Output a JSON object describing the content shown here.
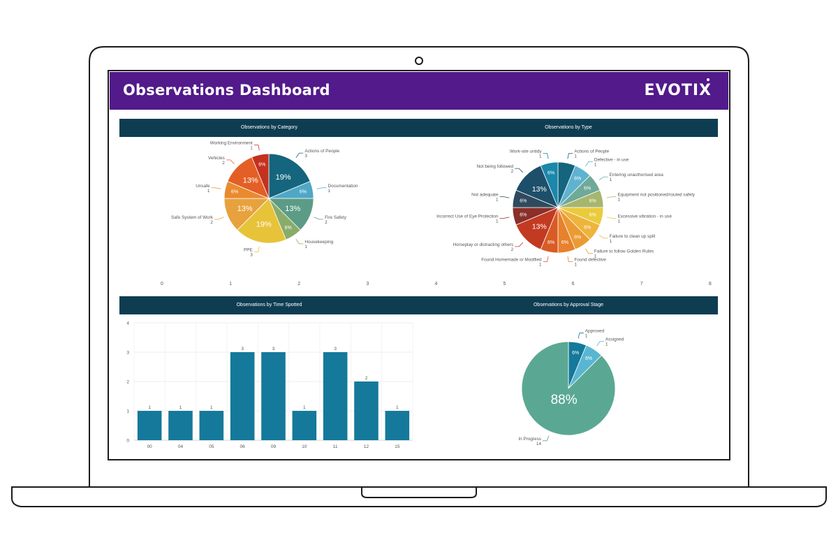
{
  "header": {
    "title": "Observations Dashboard",
    "logo_text": "EVOTIX",
    "bg_color": "#521a8a"
  },
  "panels": {
    "category_title": "Observations by Category",
    "type_title": "Observations by Type",
    "time_title": "Observations by Time Spotted",
    "approval_title": "Observations by Approval Stage"
  },
  "shared_axis_ticks": [
    "0",
    "1",
    "2",
    "3",
    "4",
    "5",
    "6",
    "7",
    "8"
  ],
  "chart_data": [
    {
      "type": "pie",
      "title": "Observations by Category",
      "labels": [
        "Actions of People",
        "Documentation",
        "Fire Safety",
        "Housekeeping",
        "PPE",
        "Safe System of Work",
        "Unsafe",
        "Vehicles",
        "Working Environment"
      ],
      "values": [
        3,
        1,
        2,
        1,
        3,
        2,
        1,
        2,
        1
      ],
      "percent_labels": [
        "19%",
        "6%",
        "13%",
        "6%",
        "19%",
        "13%",
        "6%",
        "13%",
        "6%"
      ],
      "colors": [
        "#14657d",
        "#4fa7c6",
        "#5c9c87",
        "#8aac6a",
        "#e7c33a",
        "#e7a23e",
        "#e98a2e",
        "#e35f25",
        "#c4311f"
      ]
    },
    {
      "type": "pie",
      "title": "Observations by Type",
      "labels": [
        "Actions of People",
        "Defective - in use",
        "Entering unauthorised area",
        "Equipment not positioned/routed safely",
        "Excessive vibration - in use",
        "Failure to clean up spill",
        "Failure to follow Golden Rules",
        "Found defective",
        "Found Homemade or Modified",
        "Horseplay or distracting others",
        "Incorrect Use of Eye Protection",
        "Not adequate",
        "Not being followed",
        "Work-site untidy"
      ],
      "values": [
        1,
        1,
        1,
        1,
        1,
        1,
        1,
        1,
        1,
        2,
        1,
        1,
        2,
        1
      ],
      "percent_labels": [
        "",
        "6%",
        "6%",
        "6%",
        "6%",
        "6%",
        "6%",
        "6%",
        "6%",
        "13%",
        "6%",
        "6%",
        "13%",
        "6%"
      ],
      "colors": [
        "#14657d",
        "#5fb3d0",
        "#6fa997",
        "#a6b66d",
        "#e9cb3c",
        "#eeb43d",
        "#ec9b33",
        "#e7812d",
        "#d95b26",
        "#c33a22",
        "#8a2f2a",
        "#2f4a5e",
        "#1d4f6b",
        "#1a87ab"
      ]
    },
    {
      "type": "bar",
      "title": "Observations by Time Spotted",
      "categories": [
        "00",
        "04",
        "05",
        "06",
        "09",
        "10",
        "11",
        "12",
        "15"
      ],
      "values": [
        1,
        1,
        1,
        3,
        3,
        1,
        3,
        2,
        1
      ],
      "ylim": [
        0,
        4
      ],
      "yticks": [
        "0",
        "1",
        "2",
        "3",
        "4"
      ],
      "color": "#14799a"
    },
    {
      "type": "pie",
      "title": "Observations by Approval Stage",
      "labels": [
        "Approved",
        "Assigned",
        "In Progress"
      ],
      "values": [
        1,
        1,
        14
      ],
      "percent_labels": [
        "6%",
        "6%",
        "88%"
      ],
      "colors": [
        "#14799a",
        "#59b6d3",
        "#5aa893"
      ]
    }
  ]
}
